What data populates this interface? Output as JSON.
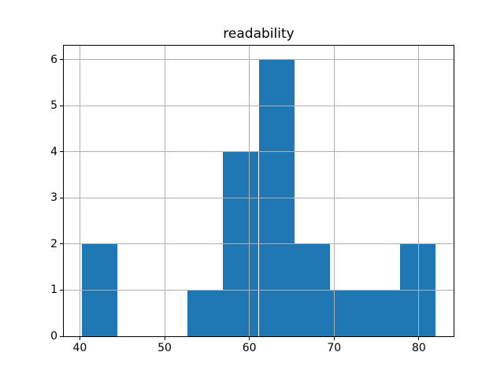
{
  "title": "readability",
  "colors": {
    "bar": "#1f77b4",
    "grid": "#b0b0b0",
    "spine": "#000000",
    "background": "#ffffff",
    "text": "#000000"
  },
  "chart_data": {
    "type": "bar",
    "subtype": "histogram",
    "title": "readability",
    "xlabel": "",
    "ylabel": "",
    "bin_edges": [
      40.2,
      44.4,
      48.6,
      52.7,
      56.9,
      61.1,
      65.3,
      69.5,
      73.6,
      77.8,
      82.0
    ],
    "counts": [
      2,
      0,
      0,
      1,
      4,
      6,
      2,
      1,
      1,
      2
    ],
    "xlim": [
      38.1,
      84.1
    ],
    "ylim": [
      0,
      6.3
    ],
    "x_ticks": [
      40,
      50,
      60,
      70,
      80
    ],
    "x_tick_labels": [
      "40",
      "50",
      "60",
      "70",
      "80"
    ],
    "y_ticks": [
      0,
      1,
      2,
      3,
      4,
      5,
      6
    ],
    "y_tick_labels": [
      "0",
      "1",
      "2",
      "3",
      "4",
      "5",
      "6"
    ],
    "grid": true,
    "grid_above_bars": true,
    "legend": null
  }
}
